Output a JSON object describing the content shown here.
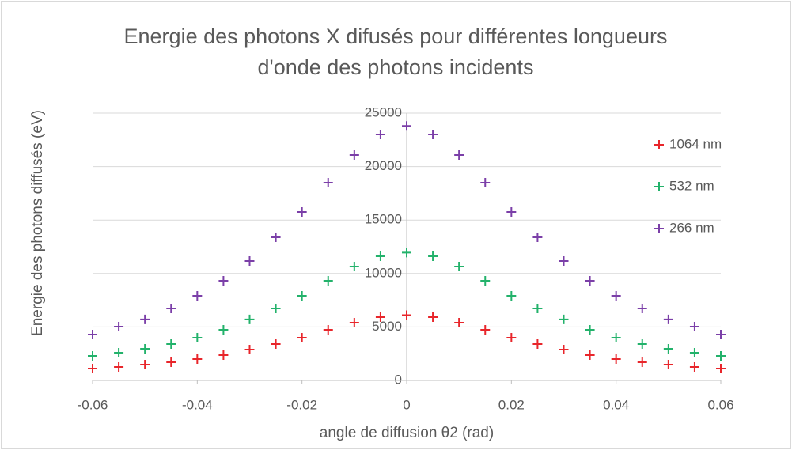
{
  "chart_data": {
    "type": "scatter",
    "title": [
      "Energie des photons X difusés pour différentes longueurs",
      "d'onde des photons incidents"
    ],
    "x_label": "angle de diffusion θ2 (rad)",
    "y_label": "Energie des photons diffusés (eV)",
    "x": [
      -0.06,
      -0.055,
      -0.05,
      -0.045,
      -0.04,
      -0.035,
      -0.03,
      -0.025,
      -0.02,
      -0.015,
      -0.01,
      -0.005,
      0,
      0.005,
      0.01,
      0.015,
      0.02,
      0.025,
      0.03,
      0.035,
      0.04,
      0.045,
      0.05,
      0.055,
      0.06
    ],
    "series": [
      {
        "name": "1064 nm",
        "color": "#e8262b",
        "values": [
          1110,
          1260,
          1480,
          1700,
          2000,
          2370,
          2880,
          3400,
          3990,
          4730,
          5400,
          5920,
          6100,
          5920,
          5400,
          4730,
          3990,
          3400,
          2880,
          2370,
          2000,
          1700,
          1480,
          1260,
          1110
        ]
      },
      {
        "name": "532 nm",
        "color": "#23b26b",
        "values": [
          2290,
          2590,
          2960,
          3400,
          3990,
          4730,
          5700,
          6730,
          7910,
          9320,
          10650,
          11610,
          11950,
          11610,
          10650,
          9320,
          7910,
          6730,
          5700,
          4730,
          3990,
          3400,
          2960,
          2590,
          2290
        ]
      },
      {
        "name": "266 nm",
        "color": "#7b3fa8",
        "values": [
          4290,
          5030,
          5700,
          6730,
          7910,
          9320,
          11170,
          13390,
          15750,
          18490,
          21080,
          23000,
          23800,
          23000,
          21080,
          18490,
          15750,
          13390,
          11170,
          9320,
          7910,
          6730,
          5700,
          5030,
          4290
        ]
      }
    ],
    "xlim": [
      -0.06,
      0.06
    ],
    "xticks": [
      -0.06,
      -0.04,
      -0.02,
      0,
      0.02,
      0.04,
      0.06
    ],
    "ylim": [
      0,
      25000
    ],
    "yticks": [
      0,
      5000,
      10000,
      15000,
      20000,
      25000
    ],
    "grid": true,
    "legend": "right"
  }
}
